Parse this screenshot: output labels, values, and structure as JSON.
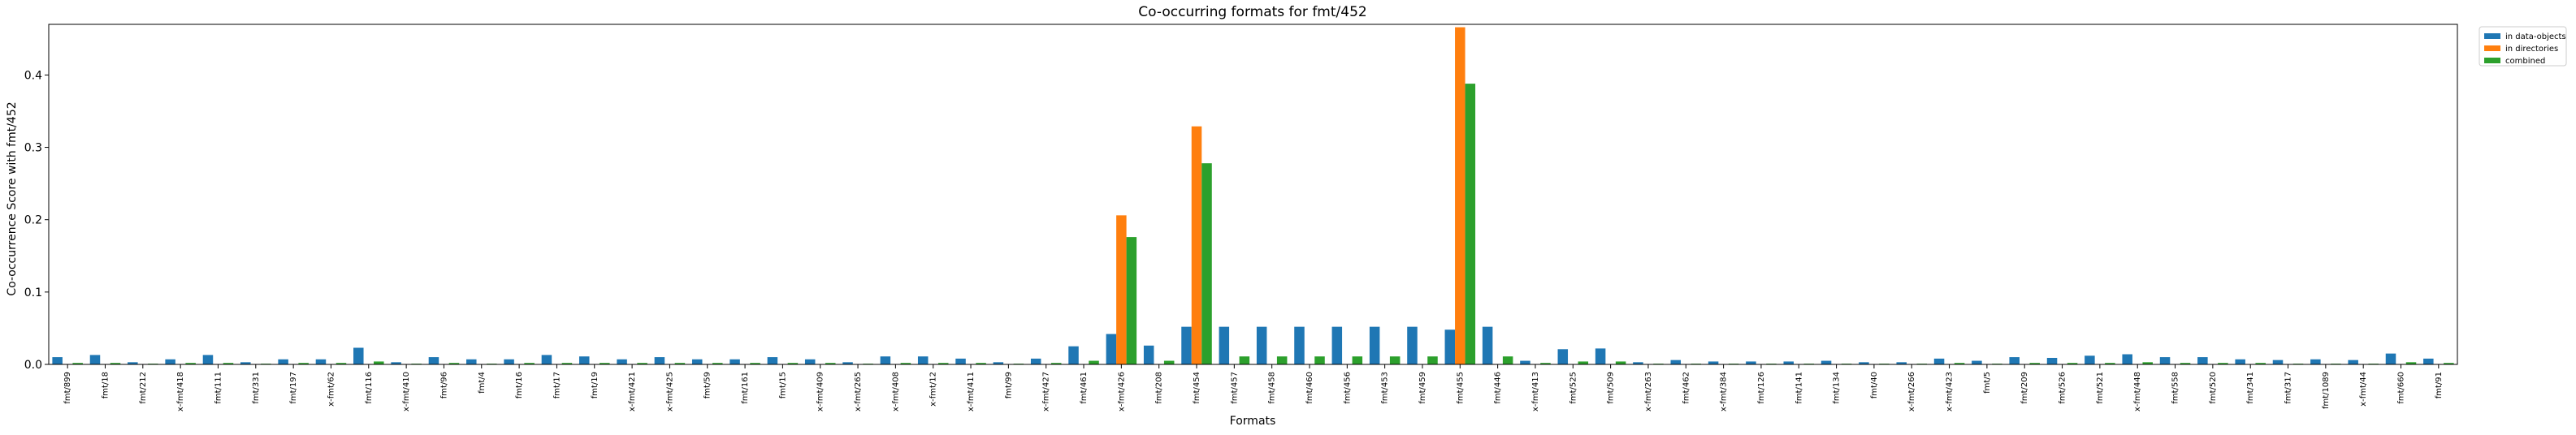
{
  "chart_data": {
    "type": "bar",
    "title": "Co-occurring formats for fmt/452",
    "xlabel": "Formats",
    "ylabel": "Co-occurrence Score with fmt/452",
    "ylim": [
      0,
      0.47
    ],
    "yticks": [
      0.0,
      0.1,
      0.2,
      0.3,
      0.4
    ],
    "ytick_labels": [
      "0.0",
      "0.1",
      "0.2",
      "0.3",
      "0.4"
    ],
    "grid": false,
    "legend_position": "outside-top-right",
    "categories": [
      "fmt/899",
      "fmt/18",
      "fmt/212",
      "x-fmt/418",
      "fmt/111",
      "fmt/331",
      "fmt/197",
      "x-fmt/62",
      "fmt/116",
      "x-fmt/410",
      "fmt/96",
      "fmt/4",
      "fmt/16",
      "fmt/17",
      "fmt/19",
      "x-fmt/421",
      "x-fmt/425",
      "fmt/59",
      "fmt/161",
      "fmt/15",
      "x-fmt/409",
      "x-fmt/265",
      "x-fmt/408",
      "x-fmt/12",
      "x-fmt/411",
      "fmt/99",
      "x-fmt/427",
      "fmt/461",
      "x-fmt/426",
      "fmt/208",
      "fmt/454",
      "fmt/457",
      "fmt/458",
      "fmt/460",
      "fmt/456",
      "fmt/453",
      "fmt/459",
      "fmt/455",
      "fmt/446",
      "x-fmt/413",
      "fmt/525",
      "fmt/509",
      "x-fmt/263",
      "fmt/462",
      "x-fmt/384",
      "fmt/126",
      "fmt/141",
      "fmt/134",
      "fmt/40",
      "x-fmt/266",
      "x-fmt/423",
      "fmt/5",
      "fmt/209",
      "fmt/526",
      "fmt/521",
      "x-fmt/448",
      "fmt/558",
      "fmt/520",
      "fmt/341",
      "fmt/317",
      "fmt/1089",
      "x-fmt/44",
      "fmt/660",
      "fmt/91"
    ],
    "series": [
      {
        "name": "in data-objects",
        "color": "#1f77b4",
        "values": [
          0.01,
          0.013,
          0.003,
          0.007,
          0.013,
          0.003,
          0.007,
          0.007,
          0.023,
          0.003,
          0.01,
          0.007,
          0.007,
          0.013,
          0.011,
          0.007,
          0.01,
          0.007,
          0.007,
          0.01,
          0.007,
          0.003,
          0.011,
          0.011,
          0.008,
          0.003,
          0.008,
          0.025,
          0.042,
          0.026,
          0.052,
          0.052,
          0.052,
          0.052,
          0.052,
          0.052,
          0.052,
          0.048,
          0.052,
          0.005,
          0.021,
          0.022,
          0.003,
          0.006,
          0.004,
          0.004,
          0.004,
          0.005,
          0.003,
          0.003,
          0.008,
          0.005,
          0.01,
          0.009,
          0.012,
          0.014,
          0.01,
          0.01,
          0.007,
          0.006,
          0.007,
          0.006,
          0.015,
          0.008
        ]
      },
      {
        "name": "in directories",
        "color": "#ff7f0e",
        "values": [
          0,
          0,
          0,
          0,
          0,
          0,
          0,
          0,
          0,
          0,
          0,
          0,
          0,
          0,
          0,
          0,
          0,
          0,
          0,
          0,
          0,
          0,
          0,
          0,
          0,
          0,
          0,
          0,
          0.206,
          0,
          0.329,
          0,
          0,
          0,
          0,
          0,
          0,
          0.466,
          0,
          0,
          0,
          0,
          0,
          0,
          0,
          0,
          0,
          0,
          0,
          0,
          0,
          0,
          0,
          0,
          0,
          0,
          0,
          0,
          0,
          0,
          0,
          0,
          0,
          0
        ]
      },
      {
        "name": "combined",
        "color": "#2ca02c",
        "values": [
          0.002,
          0.002,
          0.001,
          0.002,
          0.002,
          0.001,
          0.002,
          0.002,
          0.004,
          0.001,
          0.002,
          0.001,
          0.002,
          0.002,
          0.002,
          0.002,
          0.002,
          0.002,
          0.002,
          0.002,
          0.002,
          0.001,
          0.002,
          0.002,
          0.002,
          0.001,
          0.002,
          0.005,
          0.176,
          0.005,
          0.278,
          0.011,
          0.011,
          0.011,
          0.011,
          0.011,
          0.011,
          0.388,
          0.011,
          0.002,
          0.004,
          0.004,
          0.001,
          0.001,
          0.001,
          0.001,
          0.001,
          0.001,
          0.001,
          0.001,
          0.002,
          0.001,
          0.002,
          0.002,
          0.002,
          0.003,
          0.002,
          0.002,
          0.002,
          0.001,
          0.001,
          0.001,
          0.003,
          0.002
        ]
      }
    ]
  }
}
